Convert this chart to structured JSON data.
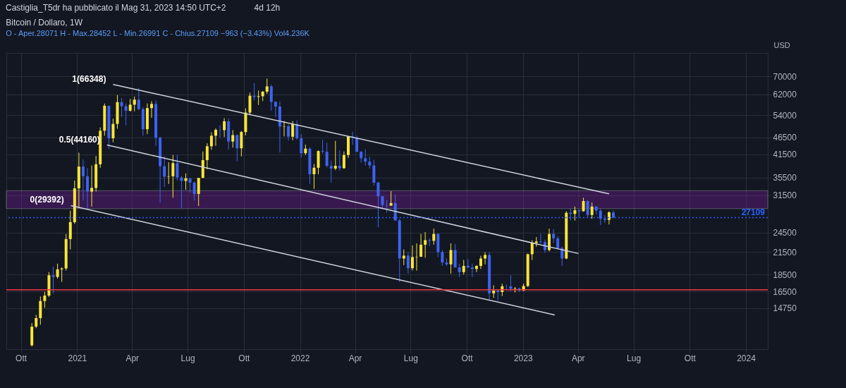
{
  "chart_data": {
    "type": "candlestick",
    "title": "Bitcoin / Dollaro, 1W",
    "subtitle": "O - Aper.28071 H - Max.28452 L - Min.26991 C - Chius.27109 −963 (−3.43%) Vol4.236K",
    "ylabel": "USD",
    "annotations": [
      "Castiglia_T5dr ha pubblicato il Mag 31, 2023 14:50 UTC+2",
      "4d 12h",
      {
        "text": "1(66348)",
        "x": "2021-03-01",
        "y": 66348
      },
      {
        "text": "0.5(44160)",
        "x": "2021-02-19",
        "y": 44160
      },
      {
        "text": "0(29392)",
        "x": "2020-12-22",
        "y": 29392
      }
    ],
    "x": [
      "2020-10-19",
      "2020-10-26",
      "2020-11-02",
      "2020-11-09",
      "2020-11-16",
      "2020-11-23",
      "2020-11-30",
      "2020-12-07",
      "2020-12-14",
      "2020-12-21",
      "2020-12-28",
      "2021-01-04",
      "2021-01-11",
      "2021-01-18",
      "2021-01-25",
      "2021-02-01",
      "2021-02-08",
      "2021-02-15",
      "2021-02-22",
      "2021-03-01",
      "2021-03-08",
      "2021-03-15",
      "2021-03-22",
      "2021-03-29",
      "2021-04-05",
      "2021-04-12",
      "2021-04-19",
      "2021-04-26",
      "2021-05-03",
      "2021-05-10",
      "2021-05-17",
      "2021-05-24",
      "2021-05-31",
      "2021-06-07",
      "2021-06-14",
      "2021-06-21",
      "2021-06-28",
      "2021-07-05",
      "2021-07-12",
      "2021-07-19",
      "2021-07-26",
      "2021-08-02",
      "2021-08-09",
      "2021-08-16",
      "2021-08-23",
      "2021-08-30",
      "2021-09-06",
      "2021-09-13",
      "2021-09-20",
      "2021-09-27",
      "2021-10-04",
      "2021-10-11",
      "2021-10-18",
      "2021-10-25",
      "2021-11-01",
      "2021-11-08",
      "2021-11-15",
      "2021-11-22",
      "2021-11-29",
      "2021-12-06",
      "2021-12-13",
      "2021-12-20",
      "2021-12-27",
      "2022-01-03",
      "2022-01-10",
      "2022-01-17",
      "2022-01-24",
      "2022-01-31",
      "2022-02-07",
      "2022-02-14",
      "2022-02-21",
      "2022-02-28",
      "2022-03-07",
      "2022-03-14",
      "2022-03-21",
      "2022-03-28",
      "2022-04-04",
      "2022-04-11",
      "2022-04-18",
      "2022-04-25",
      "2022-05-02",
      "2022-05-09",
      "2022-05-16",
      "2022-05-23",
      "2022-05-30",
      "2022-06-06",
      "2022-06-13",
      "2022-06-20",
      "2022-06-27",
      "2022-07-04",
      "2022-07-11",
      "2022-07-18",
      "2022-07-25",
      "2022-08-01",
      "2022-08-08",
      "2022-08-15",
      "2022-08-22",
      "2022-08-29",
      "2022-09-05",
      "2022-09-12",
      "2022-09-19",
      "2022-09-26",
      "2022-10-03",
      "2022-10-10",
      "2022-10-17",
      "2022-10-24",
      "2022-10-31",
      "2022-11-07",
      "2022-11-14",
      "2022-11-21",
      "2022-11-28",
      "2022-12-05",
      "2022-12-12",
      "2022-12-19",
      "2022-12-26",
      "2023-01-02",
      "2023-01-09",
      "2023-01-16",
      "2023-01-23",
      "2023-01-30",
      "2023-02-06",
      "2023-02-13",
      "2023-02-20",
      "2023-02-27",
      "2023-03-06",
      "2023-03-13",
      "2023-03-20",
      "2023-03-27",
      "2023-04-03",
      "2023-04-10",
      "2023-04-17",
      "2023-04-24",
      "2023-05-01",
      "2023-05-08",
      "2023-05-15",
      "2023-05-22",
      "2023-05-29"
    ],
    "ohlc": [
      [
        11500,
        13350,
        11400,
        13030
      ],
      [
        13030,
        14100,
        12900,
        13800
      ],
      [
        13800,
        15960,
        13200,
        15480
      ],
      [
        15480,
        16480,
        14800,
        16060
      ],
      [
        16060,
        18800,
        15900,
        18400
      ],
      [
        18400,
        19500,
        16300,
        18200
      ],
      [
        18200,
        19900,
        18000,
        19150
      ],
      [
        19150,
        19400,
        17600,
        19270
      ],
      [
        19270,
        24300,
        19000,
        23480
      ],
      [
        23480,
        28400,
        21900,
        26300
      ],
      [
        26300,
        34800,
        26000,
        33000
      ],
      [
        33000,
        41950,
        29000,
        38200
      ],
      [
        38200,
        40100,
        30400,
        35800
      ],
      [
        35800,
        37800,
        28800,
        32300
      ],
      [
        32300,
        38500,
        29200,
        33100
      ],
      [
        33100,
        41000,
        32300,
        38800
      ],
      [
        38800,
        49700,
        37900,
        48600
      ],
      [
        48600,
        58350,
        47000,
        57500
      ],
      [
        57500,
        57500,
        43000,
        46200
      ],
      [
        46200,
        52700,
        45000,
        50900
      ],
      [
        50900,
        61800,
        49300,
        58900
      ],
      [
        58900,
        60600,
        53300,
        57300
      ],
      [
        57300,
        58400,
        50400,
        55600
      ],
      [
        55600,
        60200,
        55300,
        57900
      ],
      [
        57900,
        61200,
        55400,
        59900
      ],
      [
        59900,
        64850,
        55800,
        56200
      ],
      [
        56200,
        57000,
        47000,
        49100
      ],
      [
        49100,
        58400,
        47500,
        56600
      ],
      [
        56600,
        59300,
        53000,
        58200
      ],
      [
        58200,
        59600,
        43900,
        46400
      ],
      [
        46400,
        46700,
        30000,
        38300
      ],
      [
        38300,
        40900,
        33300,
        35700
      ],
      [
        35700,
        39300,
        34000,
        35800
      ],
      [
        35800,
        41300,
        31000,
        39100
      ],
      [
        39100,
        41300,
        34800,
        35500
      ],
      [
        35500,
        35900,
        28800,
        34700
      ],
      [
        34700,
        36500,
        32700,
        35300
      ],
      [
        35300,
        35300,
        32100,
        34300
      ],
      [
        34300,
        34600,
        30400,
        31800
      ],
      [
        31800,
        35400,
        29300,
        35400
      ],
      [
        35400,
        42300,
        35400,
        39900
      ],
      [
        39900,
        44700,
        37500,
        43800
      ],
      [
        43800,
        48100,
        42800,
        47000
      ],
      [
        47000,
        49400,
        43900,
        48900
      ],
      [
        48900,
        50500,
        46400,
        48800
      ],
      [
        48800,
        52900,
        46600,
        51800
      ],
      [
        51800,
        52700,
        42800,
        45200
      ],
      [
        45200,
        48800,
        43400,
        47200
      ],
      [
        47200,
        47400,
        39600,
        43200
      ],
      [
        43200,
        48500,
        40900,
        48200
      ],
      [
        48200,
        56500,
        47100,
        54900
      ],
      [
        54900,
        62800,
        54100,
        61500
      ],
      [
        61500,
        67000,
        59500,
        61000
      ],
      [
        61000,
        63700,
        57800,
        61300
      ],
      [
        61300,
        63500,
        59300,
        63200
      ],
      [
        63200,
        69000,
        62300,
        65500
      ],
      [
        65500,
        66300,
        55600,
        59000
      ],
      [
        59000,
        59400,
        53300,
        57200
      ],
      [
        57200,
        59200,
        42000,
        50000
      ],
      [
        50000,
        51900,
        46800,
        50100
      ],
      [
        50100,
        50700,
        45500,
        46700
      ],
      [
        46700,
        51900,
        45600,
        50800
      ],
      [
        50800,
        52100,
        45800,
        46200
      ],
      [
        46200,
        47500,
        40600,
        41800
      ],
      [
        41800,
        44300,
        41300,
        43100
      ],
      [
        43100,
        43500,
        34000,
        36300
      ],
      [
        36300,
        38900,
        32900,
        37900
      ],
      [
        37900,
        42600,
        36300,
        42400
      ],
      [
        42400,
        45800,
        41700,
        42200
      ],
      [
        42200,
        44800,
        38000,
        38400
      ],
      [
        38400,
        39800,
        34300,
        37700
      ],
      [
        37700,
        45400,
        37300,
        38400
      ],
      [
        38400,
        42600,
        37200,
        37800
      ],
      [
        37800,
        42300,
        37600,
        41300
      ],
      [
        41300,
        46800,
        40500,
        46800
      ],
      [
        46800,
        48200,
        44200,
        46400
      ],
      [
        46400,
        47000,
        42100,
        42200
      ],
      [
        42200,
        42400,
        39200,
        40400
      ],
      [
        40400,
        42900,
        38500,
        39500
      ],
      [
        39500,
        40800,
        37700,
        38500
      ],
      [
        38500,
        40000,
        33700,
        34300
      ],
      [
        34300,
        34500,
        25400,
        31300
      ],
      [
        31300,
        31300,
        28700,
        29500
      ],
      [
        29500,
        30500,
        28000,
        29400
      ],
      [
        29400,
        32400,
        29300,
        29900
      ],
      [
        29900,
        31700,
        26600,
        26600
      ],
      [
        26600,
        26900,
        17600,
        20600
      ],
      [
        20600,
        21900,
        19700,
        21000
      ],
      [
        21000,
        21500,
        18600,
        19300
      ],
      [
        19300,
        22500,
        19000,
        20800
      ],
      [
        20800,
        22800,
        19000,
        20850
      ],
      [
        20850,
        24300,
        20800,
        22600
      ],
      [
        22600,
        24600,
        20700,
        23300
      ],
      [
        23300,
        23600,
        22400,
        23200
      ],
      [
        23200,
        25200,
        22600,
        24300
      ],
      [
        24300,
        24400,
        20800,
        21500
      ],
      [
        21500,
        21800,
        19600,
        20050
      ],
      [
        20050,
        20600,
        19600,
        19800
      ],
      [
        19800,
        22800,
        18600,
        21800
      ],
      [
        21800,
        22700,
        19400,
        19400
      ],
      [
        19400,
        19900,
        18200,
        18800
      ],
      [
        18800,
        20400,
        18500,
        19600
      ],
      [
        19600,
        20500,
        19300,
        19400
      ],
      [
        19400,
        19900,
        18200,
        19200
      ],
      [
        19200,
        19700,
        18800,
        19600
      ],
      [
        19600,
        21000,
        19200,
        20600
      ],
      [
        20600,
        21500,
        19800,
        21100
      ],
      [
        21100,
        21500,
        15600,
        16300
      ],
      [
        16300,
        17200,
        15800,
        16600
      ],
      [
        16600,
        16750,
        15500,
        16450
      ],
      [
        16450,
        17400,
        16000,
        17100
      ],
      [
        17100,
        17300,
        16700,
        17090
      ],
      [
        17090,
        18400,
        16550,
        16800
      ],
      [
        16800,
        17000,
        16400,
        16850
      ],
      [
        16850,
        16950,
        16450,
        16600
      ],
      [
        16600,
        17400,
        16550,
        17130
      ],
      [
        17130,
        21300,
        17000,
        21200
      ],
      [
        21200,
        23300,
        20400,
        22900
      ],
      [
        22900,
        23800,
        22300,
        23100
      ],
      [
        23100,
        24300,
        22800,
        23000
      ],
      [
        23000,
        23400,
        21400,
        21800
      ],
      [
        21800,
        25200,
        21600,
        24300
      ],
      [
        24300,
        25100,
        22900,
        23600
      ],
      [
        23600,
        23900,
        21900,
        22100
      ],
      [
        22100,
        22300,
        19600,
        20600
      ],
      [
        20600,
        28300,
        20500,
        28000
      ],
      [
        28000,
        28800,
        26600,
        27800
      ],
      [
        27800,
        29200,
        26600,
        28500
      ],
      [
        28500,
        28600,
        27200,
        28300
      ],
      [
        28300,
        31000,
        28200,
        30300
      ],
      [
        30300,
        30500,
        27100,
        27600
      ],
      [
        27600,
        30000,
        26900,
        29200
      ],
      [
        29200,
        29300,
        27700,
        28400
      ],
      [
        28400,
        28800,
        25800,
        26900
      ],
      [
        26900,
        27600,
        26200,
        26700
      ],
      [
        26700,
        28300,
        25900,
        28100
      ],
      [
        28071,
        28452,
        26991,
        27109
      ]
    ],
    "colors": [
      "#f9e53a",
      "#f9e53a",
      "#f9e53a",
      "#f9e53a",
      "#f9e53a",
      "#3d63f0",
      "#f9e53a",
      "#f9e53a",
      "#f9e53a",
      "#f9e53a",
      "#f9e53a",
      "#f9e53a",
      "#3d63f0",
      "#3d63f0",
      "#f9e53a",
      "#f9e53a",
      "#f9e53a",
      "#f9e53a",
      "#3d63f0",
      "#f9e53a",
      "#f9e53a",
      "#3d63f0",
      "#3d63f0",
      "#f9e53a",
      "#f9e53a",
      "#3d63f0",
      "#3d63f0",
      "#f9e53a",
      "#f9e53a",
      "#3d63f0",
      "#3d63f0",
      "#3d63f0",
      "#f9e53a",
      "#f9e53a",
      "#3d63f0",
      "#3d63f0",
      "#f9e53a",
      "#3d63f0",
      "#3d63f0",
      "#f9e53a",
      "#f9e53a",
      "#f9e53a",
      "#f9e53a",
      "#f9e53a",
      "#3d63f0",
      "#f9e53a",
      "#3d63f0",
      "#f9e53a",
      "#3d63f0",
      "#f9e53a",
      "#f9e53a",
      "#f9e53a",
      "#3d63f0",
      "#f9e53a",
      "#f9e53a",
      "#f9e53a",
      "#3d63f0",
      "#3d63f0",
      "#3d63f0",
      "#f9e53a",
      "#3d63f0",
      "#f9e53a",
      "#3d63f0",
      "#3d63f0",
      "#f9e53a",
      "#3d63f0",
      "#f9e53a",
      "#f9e53a",
      "#3d63f0",
      "#3d63f0",
      "#3d63f0",
      "#f9e53a",
      "#3d63f0",
      "#f9e53a",
      "#f9e53a",
      "#3d63f0",
      "#3d63f0",
      "#3d63f0",
      "#3d63f0",
      "#3d63f0",
      "#3d63f0",
      "#3d63f0",
      "#3d63f0",
      "#3d63f0",
      "#f9e53a",
      "#3d63f0",
      "#3d63f0",
      "#f9e53a",
      "#3d63f0",
      "#f9e53a",
      "#f9e53a",
      "#f9e53a",
      "#f9e53a",
      "#3d63f0",
      "#f9e53a",
      "#3d63f0",
      "#3d63f0",
      "#3d63f0",
      "#f9e53a",
      "#3d63f0",
      "#3d63f0",
      "#f9e53a",
      "#3d63f0",
      "#3d63f0",
      "#f9e53a",
      "#f9e53a",
      "#f9e53a",
      "#3d63f0",
      "#f9e53a",
      "#3d63f0",
      "#f9e53a",
      "#3d63f0",
      "#3d63f0",
      "#f9e53a",
      "#3d63f0",
      "#f9e53a",
      "#f9e53a",
      "#f9e53a",
      "#f9e53a",
      "#3d63f0",
      "#3d63f0",
      "#f9e53a",
      "#3d63f0",
      "#3d63f0",
      "#3d63f0",
      "#f9e53a",
      "#3d63f0",
      "#f9e53a",
      "#3d63f0",
      "#f9e53a",
      "#3d63f0",
      "#f9e53a",
      "#3d63f0",
      "#3d63f0",
      "#3d63f0",
      "#f9e53a",
      "#3d63f0"
    ],
    "series": [
      {
        "type": "line",
        "color": "#d1d4dc",
        "x": [
          "2021-03-01",
          "2023-05-22"
        ],
        "values": [
          66348,
          31800
        ]
      },
      {
        "type": "line",
        "color": "#d1d4dc",
        "x": [
          "2021-02-19",
          "2023-04-02"
        ],
        "values": [
          44160,
          21300
        ]
      },
      {
        "type": "line",
        "color": "#d1d4dc",
        "x": [
          "2020-12-22",
          "2023-02-22"
        ],
        "values": [
          29392,
          14100
        ]
      }
    ],
    "bands": [
      {
        "axis": "y",
        "from": 28800,
        "to": 32500,
        "color": "#7b1fa2"
      }
    ],
    "ref_lines": [
      {
        "axis": "y",
        "value": 27109,
        "label": "27109",
        "color": "#2962ff",
        "line_style": "dotted"
      },
      {
        "axis": "y",
        "value": 16700,
        "color": "#f23645"
      }
    ],
    "log": true,
    "ylim": [
      11200,
      82000
    ],
    "yticks": [
      14750,
      16500,
      18500,
      21500,
      24500,
      31500,
      35500,
      41500,
      46500,
      54000,
      62000,
      70000
    ],
    "xlim": [
      "2020-09-13",
      "2024-01-31"
    ],
    "xticks": [
      {
        "value": "2020-10-01",
        "label": "Ott"
      },
      {
        "value": "2021-01-01",
        "label": "2021"
      },
      {
        "value": "2021-04-01",
        "label": "Apr"
      },
      {
        "value": "2021-07-01",
        "label": "Lug"
      },
      {
        "value": "2021-10-01",
        "label": "Ott"
      },
      {
        "value": "2022-01-01",
        "label": "2022"
      },
      {
        "value": "2022-04-01",
        "label": "Apr"
      },
      {
        "value": "2022-07-01",
        "label": "Lug"
      },
      {
        "value": "2022-10-01",
        "label": "Ott"
      },
      {
        "value": "2023-01-01",
        "label": "2023"
      },
      {
        "value": "2023-04-01",
        "label": "Apr"
      },
      {
        "value": "2023-07-01",
        "label": "Lug"
      },
      {
        "value": "2023-10-01",
        "label": "Ott"
      },
      {
        "value": "2024-01-01",
        "label": "2024"
      }
    ],
    "grid": true
  }
}
